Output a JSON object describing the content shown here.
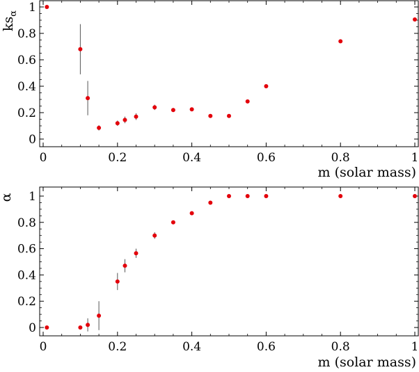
{
  "chart_data": [
    {
      "type": "scatter",
      "title": "",
      "xlabel": "m (solar mass)",
      "ylabel": "ks",
      "ylabel_subscript": "α",
      "xlim": [
        0,
        1
      ],
      "ylim": [
        0,
        1
      ],
      "x_ticks": [
        "0",
        "0.2",
        "0.4",
        "0.6",
        "0.8",
        "1"
      ],
      "y_ticks": [
        "0",
        "0.2",
        "0.4",
        "0.6",
        "0.8",
        "1"
      ],
      "grid": false,
      "marker_color": "#e3000b",
      "errorbar_color": "#555555",
      "points": [
        {
          "x": 0.01,
          "y": 1.0,
          "err": 0.0
        },
        {
          "x": 0.1,
          "y": 0.68,
          "err": 0.19
        },
        {
          "x": 0.12,
          "y": 0.31,
          "err": 0.13
        },
        {
          "x": 0.15,
          "y": 0.085,
          "err": 0.02
        },
        {
          "x": 0.2,
          "y": 0.12,
          "err": 0.02
        },
        {
          "x": 0.22,
          "y": 0.145,
          "err": 0.025
        },
        {
          "x": 0.25,
          "y": 0.17,
          "err": 0.025
        },
        {
          "x": 0.3,
          "y": 0.24,
          "err": 0.02
        },
        {
          "x": 0.35,
          "y": 0.22,
          "err": 0.015
        },
        {
          "x": 0.4,
          "y": 0.225,
          "err": 0.0
        },
        {
          "x": 0.45,
          "y": 0.175,
          "err": 0.0
        },
        {
          "x": 0.5,
          "y": 0.175,
          "err": 0.0
        },
        {
          "x": 0.55,
          "y": 0.285,
          "err": 0.0
        },
        {
          "x": 0.6,
          "y": 0.4,
          "err": 0.0
        },
        {
          "x": 0.8,
          "y": 0.74,
          "err": 0.0
        },
        {
          "x": 1.0,
          "y": 0.905,
          "err": 0.0
        }
      ]
    },
    {
      "type": "scatter",
      "title": "",
      "xlabel": "m (solar mass)",
      "ylabel": "α",
      "xlim": [
        0,
        1
      ],
      "ylim": [
        0,
        1
      ],
      "x_ticks": [
        "0",
        "0.2",
        "0.4",
        "0.6",
        "0.8",
        "1"
      ],
      "y_ticks": [
        "0",
        "0.2",
        "0.4",
        "0.6",
        "0.8",
        "1"
      ],
      "grid": false,
      "marker_color": "#e3000b",
      "errorbar_color": "#555555",
      "points": [
        {
          "x": 0.01,
          "y": 0.0,
          "err": 0.0
        },
        {
          "x": 0.1,
          "y": 0.0,
          "err": 0.0
        },
        {
          "x": 0.12,
          "y": 0.02,
          "err": 0.05
        },
        {
          "x": 0.15,
          "y": 0.09,
          "err": 0.11
        },
        {
          "x": 0.2,
          "y": 0.35,
          "err": 0.065
        },
        {
          "x": 0.22,
          "y": 0.47,
          "err": 0.05
        },
        {
          "x": 0.25,
          "y": 0.565,
          "err": 0.035
        },
        {
          "x": 0.3,
          "y": 0.7,
          "err": 0.025
        },
        {
          "x": 0.35,
          "y": 0.8,
          "err": 0.0
        },
        {
          "x": 0.4,
          "y": 0.87,
          "err": 0.0
        },
        {
          "x": 0.45,
          "y": 0.95,
          "err": 0.0
        },
        {
          "x": 0.5,
          "y": 1.0,
          "err": 0.0
        },
        {
          "x": 0.55,
          "y": 1.0,
          "err": 0.0
        },
        {
          "x": 0.6,
          "y": 1.0,
          "err": 0.0
        },
        {
          "x": 0.8,
          "y": 1.0,
          "err": 0.0
        },
        {
          "x": 1.0,
          "y": 1.0,
          "err": 0.0
        }
      ]
    }
  ]
}
